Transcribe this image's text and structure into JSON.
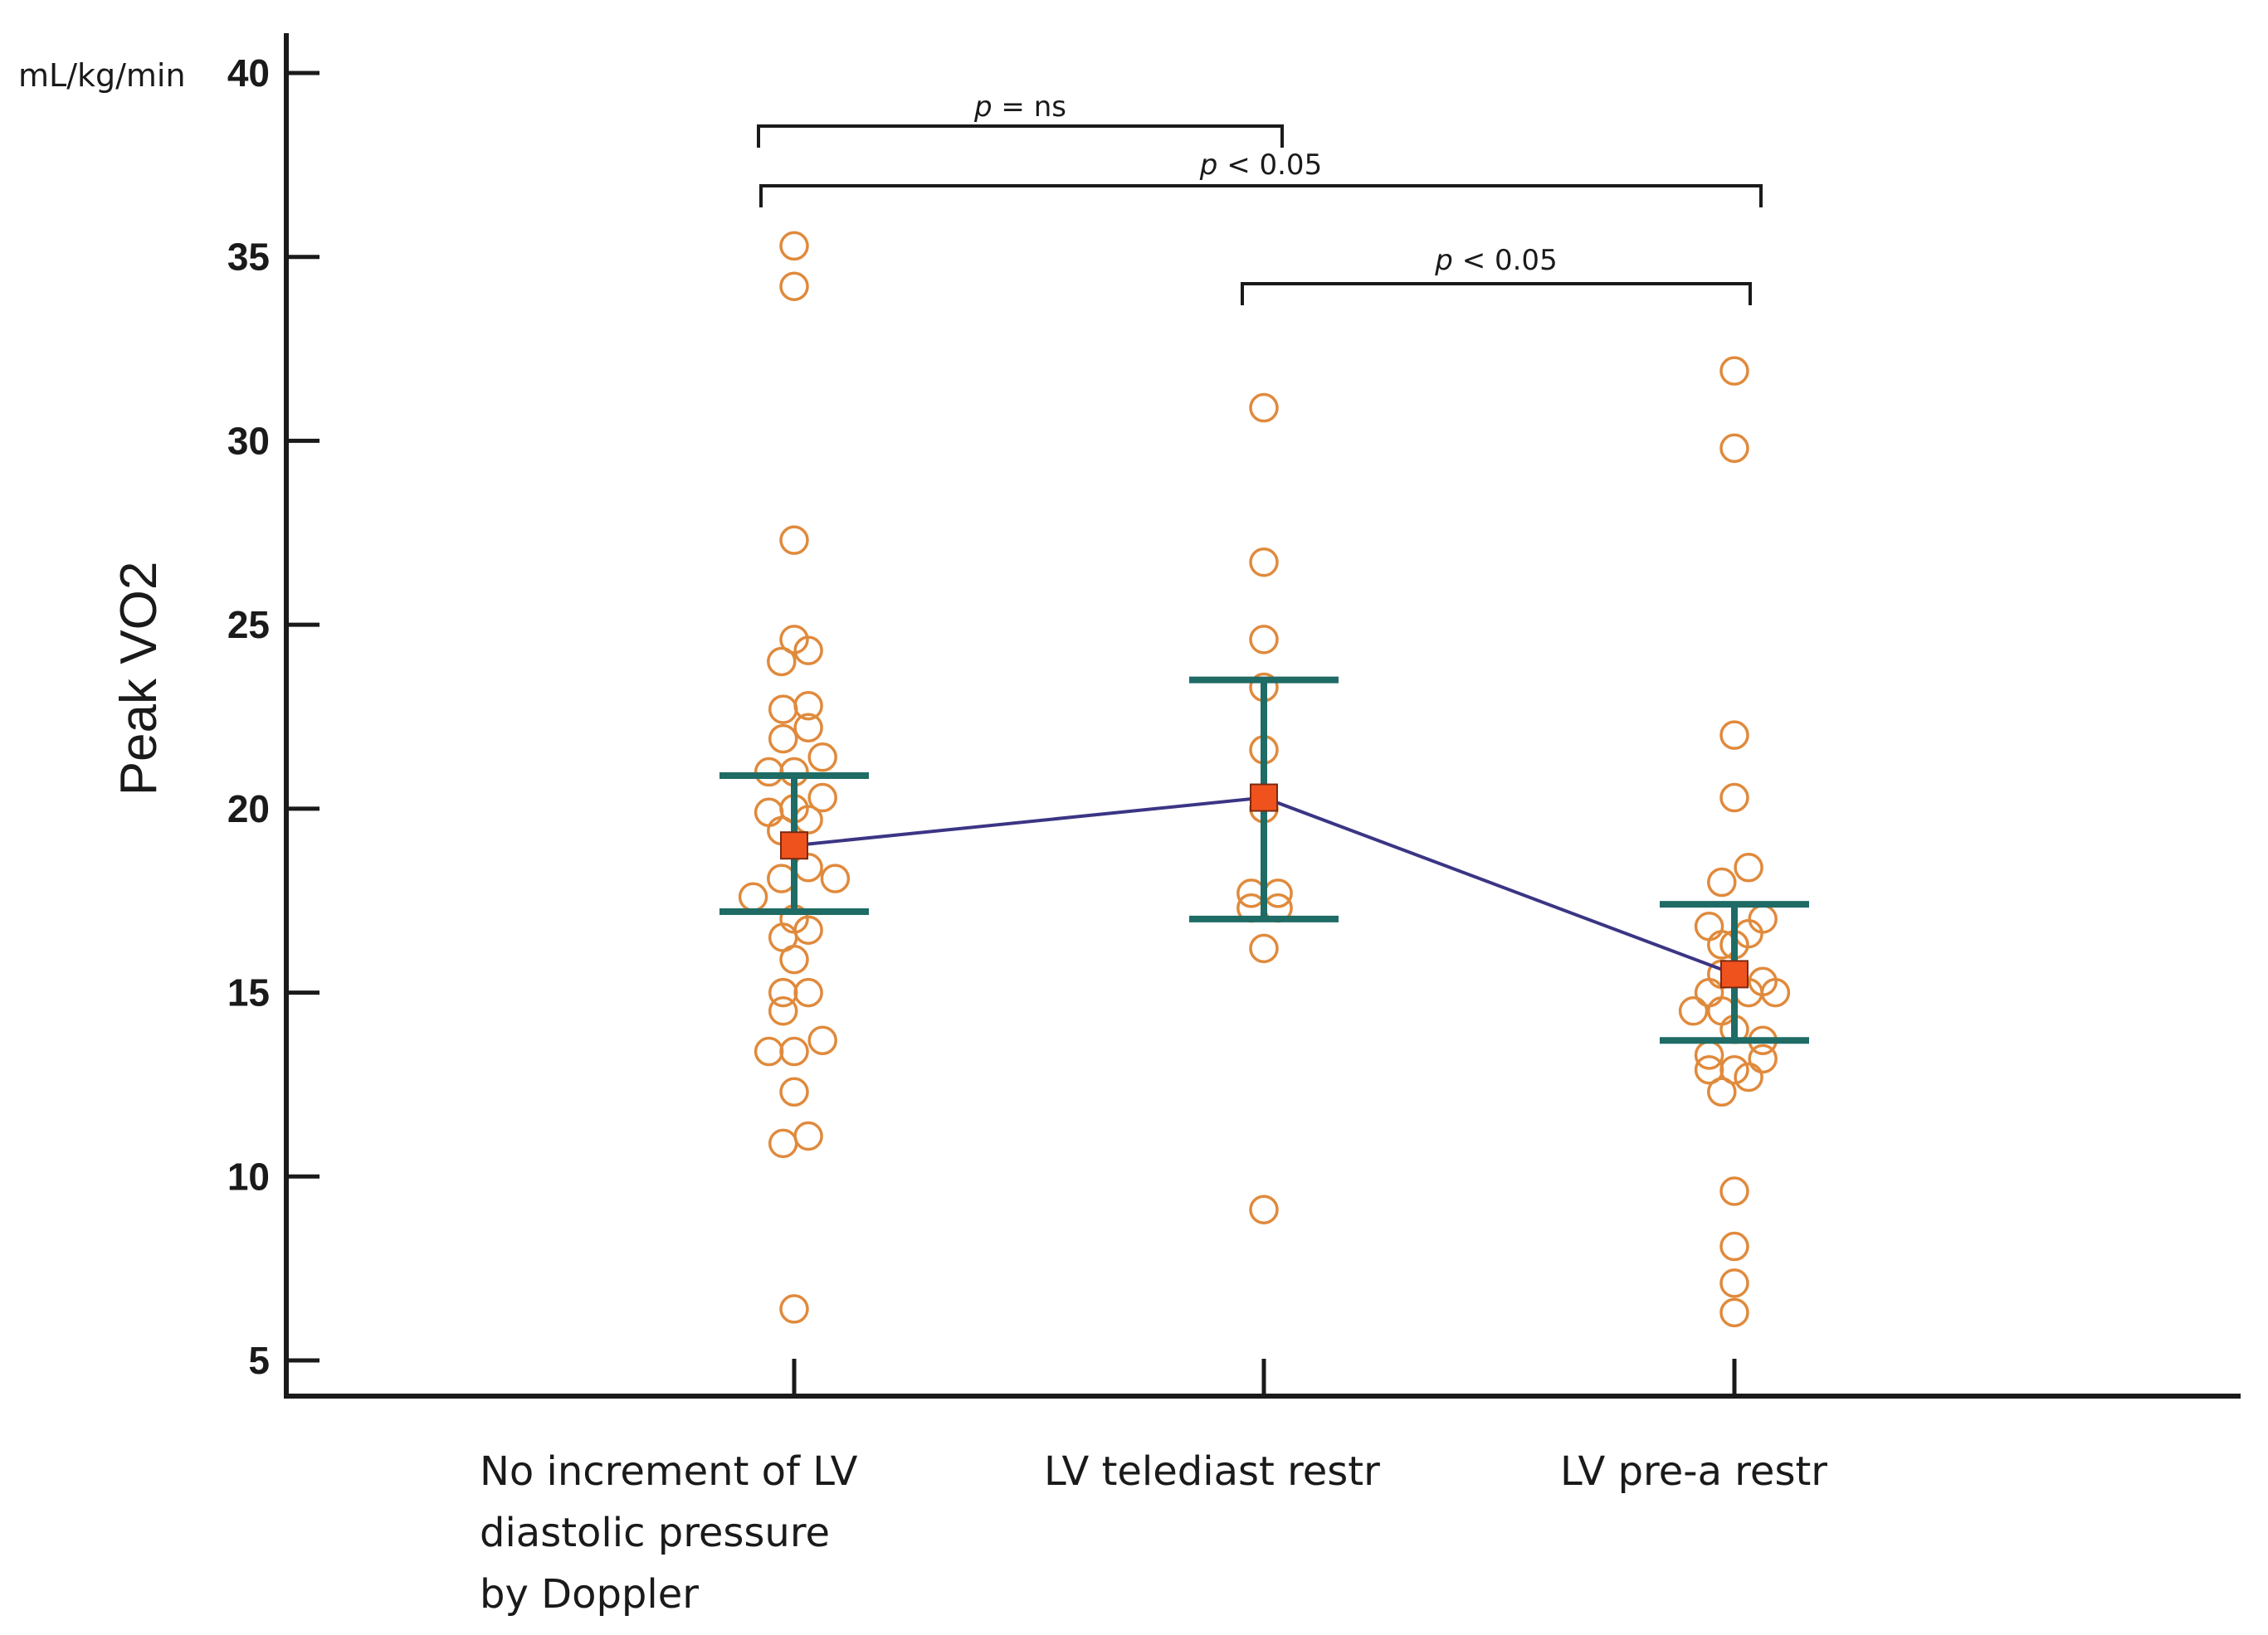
{
  "chart_data": {
    "type": "scatter",
    "title": "",
    "xlabel": "",
    "ylabel": "Peak VO2",
    "unit": "mL/kg/min",
    "ylim": [
      4,
      40.5
    ],
    "yticks": [
      5,
      10,
      15,
      20,
      25,
      30,
      35,
      40
    ],
    "categories": [
      {
        "lines": [
          "No increment of LV",
          "diastolic pressure",
          "by Doppler"
        ]
      },
      {
        "lines": [
          "LV telediast restr"
        ]
      },
      {
        "lines": [
          "LV pre-a restr"
        ]
      }
    ],
    "groups": [
      {
        "mean": 19.0,
        "ci_low": 17.2,
        "ci_high": 20.9,
        "points": [
          [
            0,
            35.3
          ],
          [
            0,
            34.2
          ],
          [
            0,
            27.3
          ],
          [
            0,
            24.6
          ],
          [
            0.45,
            24.3
          ],
          [
            -0.4,
            24.0
          ],
          [
            -0.35,
            22.7
          ],
          [
            0.45,
            22.8
          ],
          [
            -0.35,
            21.9
          ],
          [
            0.45,
            22.2
          ],
          [
            -0.8,
            21.0
          ],
          [
            0.9,
            21.4
          ],
          [
            0,
            21.0
          ],
          [
            0,
            20.0
          ],
          [
            0.9,
            20.3
          ],
          [
            -0.8,
            19.9
          ],
          [
            0.45,
            19.7
          ],
          [
            -0.4,
            19.4
          ],
          [
            0.45,
            18.4
          ],
          [
            -0.4,
            18.1
          ],
          [
            1.3,
            18.1
          ],
          [
            -1.3,
            17.6
          ],
          [
            0,
            17.0
          ],
          [
            -0.35,
            16.5
          ],
          [
            0.45,
            16.7
          ],
          [
            0,
            15.9
          ],
          [
            -0.35,
            15.0
          ],
          [
            0.45,
            15.0
          ],
          [
            -0.35,
            14.5
          ],
          [
            0.9,
            13.7
          ],
          [
            -0.8,
            13.4
          ],
          [
            0,
            13.4
          ],
          [
            0,
            12.3
          ],
          [
            0.45,
            11.1
          ],
          [
            -0.35,
            10.9
          ],
          [
            0,
            6.4
          ]
        ]
      },
      {
        "mean": 20.3,
        "ci_low": 17.0,
        "ci_high": 23.5,
        "points": [
          [
            0,
            30.9
          ],
          [
            0,
            26.7
          ],
          [
            0,
            24.6
          ],
          [
            0,
            23.3
          ],
          [
            0,
            21.6
          ],
          [
            0,
            20.0
          ],
          [
            -0.4,
            17.7
          ],
          [
            0.45,
            17.7
          ],
          [
            -0.4,
            17.3
          ],
          [
            0.45,
            17.3
          ],
          [
            0,
            16.2
          ],
          [
            0,
            9.1
          ]
        ]
      },
      {
        "mean": 15.5,
        "ci_low": 13.7,
        "ci_high": 17.4,
        "points": [
          [
            0,
            31.9
          ],
          [
            0,
            29.8
          ],
          [
            0,
            22.0
          ],
          [
            0,
            20.3
          ],
          [
            0.45,
            18.4
          ],
          [
            -0.4,
            18.0
          ],
          [
            -0.8,
            16.8
          ],
          [
            0.45,
            16.6
          ],
          [
            0,
            16.3
          ],
          [
            0.9,
            17.0
          ],
          [
            -0.4,
            16.3
          ],
          [
            -0.8,
            15.0
          ],
          [
            0.45,
            15.0
          ],
          [
            1.3,
            15.0
          ],
          [
            0.9,
            15.3
          ],
          [
            -0.4,
            15.5
          ],
          [
            -1.3,
            14.5
          ],
          [
            -0.4,
            14.5
          ],
          [
            0,
            14.0
          ],
          [
            0.9,
            13.7
          ],
          [
            -0.8,
            13.3
          ],
          [
            -0.8,
            12.9
          ],
          [
            0,
            12.9
          ],
          [
            0.9,
            13.2
          ],
          [
            0.45,
            12.7
          ],
          [
            -0.4,
            12.3
          ],
          [
            0,
            9.6
          ],
          [
            0,
            8.1
          ],
          [
            0,
            7.1
          ],
          [
            0,
            6.3
          ]
        ]
      }
    ],
    "comparisons": [
      {
        "from": 0,
        "to": 1,
        "label_p": "p",
        "label_rest": " = ns"
      },
      {
        "from": 0,
        "to": 2,
        "label_p": "p",
        "label_rest": " < 0.05"
      },
      {
        "from": 1,
        "to": 2,
        "label_p": "p",
        "label_rest": " < 0.05"
      }
    ],
    "colors": {
      "axis": "#1a1a1a",
      "point": "#e08a3c",
      "mean_fill": "#f0521e",
      "mean_stroke": "#7a2a10",
      "ci": "#1f6b66",
      "line": "#3b3585",
      "bracket": "#1a1a1a"
    }
  }
}
